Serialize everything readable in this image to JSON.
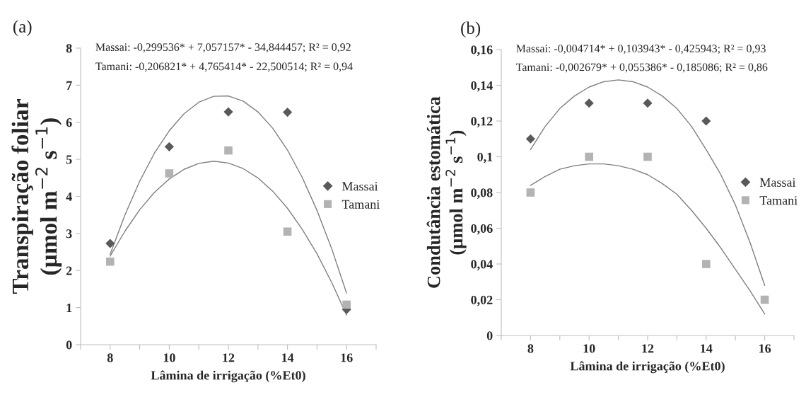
{
  "chart_data": [
    {
      "type": "scatter",
      "title": "(a)",
      "xlabel": "Lâmina de irrigação (%Et0)",
      "ylabel": "Transpiração foliar\n(µmol m$^{−2}$ s$^{−1}$)",
      "annotations": [
        "Massai: -0,299536* + 7,057157* - 34,844457; R² = 0,92",
        "Tamani: -0,206821* + 4,765414* - 22,500514; R² = 0,94"
      ],
      "xlim": [
        7,
        17
      ],
      "xticks": [
        {
          "value": 7,
          "label": null
        },
        8,
        {
          "value": 9,
          "label": null
        },
        10,
        {
          "value": 11,
          "label": null
        },
        12,
        {
          "value": 13,
          "label": null
        },
        14,
        {
          "value": 15,
          "label": null
        },
        16,
        {
          "value": 17,
          "label": null
        }
      ],
      "ylim": [
        0,
        8
      ],
      "yticks": [
        0,
        1,
        2,
        3,
        4,
        5,
        6,
        7,
        8
      ],
      "grid": false,
      "legend": "right",
      "series": [
        {
          "name": "Massai",
          "color": "#595959",
          "marker": "diamond",
          "x": [
            8,
            10,
            12,
            14,
            16
          ],
          "values": [
            2.73,
            5.34,
            6.28,
            6.27,
            0.95
          ]
        },
        {
          "name": "Tamani",
          "color": "#b3b3b3",
          "marker": "square",
          "x": [
            8,
            10,
            12,
            14,
            16
          ],
          "values": [
            2.24,
            4.62,
            5.24,
            3.05,
            1.08
          ]
        },
        {
          "type": "line",
          "color": "#7f7f7f",
          "marker": "none",
          "x": [
            8,
            8.5,
            9,
            9.5,
            10,
            10.5,
            11,
            11.5,
            12,
            12.5,
            13,
            13.5,
            14,
            14.5,
            15,
            15.5,
            16
          ],
          "values": [
            2.44,
            3.5,
            4.41,
            5.17,
            5.77,
            6.23,
            6.54,
            6.7,
            6.71,
            6.57,
            6.28,
            5.84,
            5.25,
            4.51,
            3.62,
            2.58,
            1.39
          ]
        },
        {
          "type": "line",
          "color": "#7f7f7f",
          "marker": "none",
          "x": [
            8,
            8.5,
            9,
            9.5,
            10,
            10.5,
            11,
            11.5,
            12,
            12.5,
            13,
            13.5,
            14,
            14.5,
            15,
            15.5,
            16
          ],
          "values": [
            2.39,
            3.06,
            3.64,
            4.11,
            4.47,
            4.73,
            4.89,
            4.95,
            4.9,
            4.75,
            4.5,
            4.14,
            3.68,
            3.11,
            2.45,
            1.67,
            0.8
          ]
        }
      ]
    },
    {
      "type": "scatter",
      "title": "(b)",
      "xlabel": "Lâmina de irrigação (%Et0)",
      "ylabel": "Condutância estomática\n(µmol m$^{−2}$ s$^{−1}$)",
      "annotations": [
        "Massai: -0,004714* + 0,103943* - 0,425943; R² = 0,93",
        "Tamani: -0,002679* + 0,055386* - 0,185086; R² = 0,86"
      ],
      "xlim": [
        7,
        17
      ],
      "xticks": [
        {
          "value": 7,
          "label": null
        },
        8,
        {
          "value": 9,
          "label": null
        },
        10,
        {
          "value": 11,
          "label": null
        },
        12,
        {
          "value": 13,
          "label": null
        },
        14,
        {
          "value": 15,
          "label": null
        },
        16,
        {
          "value": 17,
          "label": null
        }
      ],
      "ylim": [
        0,
        0.16
      ],
      "yticks": [
        {
          "value": 0,
          "label": "0"
        },
        {
          "value": 0.02,
          "label": "0,02"
        },
        {
          "value": 0.04,
          "label": "0,04"
        },
        {
          "value": 0.06,
          "label": "0,06"
        },
        {
          "value": 0.08,
          "label": "0,08"
        },
        {
          "value": 0.1,
          "label": "0,1"
        },
        {
          "value": 0.12,
          "label": "0,12"
        },
        {
          "value": 0.14,
          "label": "0,14"
        },
        {
          "value": 0.16,
          "label": "0,16"
        }
      ],
      "grid": false,
      "legend": "right",
      "series": [
        {
          "name": "Massai",
          "color": "#595959",
          "marker": "diamond",
          "x": [
            8,
            10,
            12,
            14
          ],
          "values": [
            0.11,
            0.13,
            0.13,
            0.12
          ]
        },
        {
          "name": "Tamani",
          "color": "#b3b3b3",
          "marker": "square",
          "x": [
            8,
            10,
            12,
            14,
            16
          ],
          "values": [
            0.08,
            0.1,
            0.1,
            0.04,
            0.02
          ]
        },
        {
          "type": "line",
          "color": "#7f7f7f",
          "marker": "none",
          "x": [
            8,
            8.5,
            9,
            9.5,
            10,
            10.5,
            11,
            11.5,
            12,
            12.5,
            13,
            13.5,
            14,
            14.5,
            15,
            15.5,
            16
          ],
          "values": [
            0.104,
            0.117,
            0.127,
            0.134,
            0.139,
            0.142,
            0.143,
            0.142,
            0.139,
            0.134,
            0.127,
            0.117,
            0.104,
            0.09,
            0.073,
            0.052,
            0.028
          ]
        },
        {
          "type": "line",
          "color": "#7f7f7f",
          "marker": "none",
          "x": [
            8,
            8.5,
            9,
            9.5,
            10,
            10.5,
            11,
            11.5,
            12,
            12.5,
            13,
            13.5,
            14,
            14.5,
            15,
            15.5,
            16
          ],
          "values": [
            0.084,
            0.089,
            0.093,
            0.095,
            0.096,
            0.096,
            0.095,
            0.093,
            0.09,
            0.085,
            0.079,
            0.07,
            0.06,
            0.049,
            0.037,
            0.025,
            0.012
          ]
        }
      ]
    }
  ]
}
